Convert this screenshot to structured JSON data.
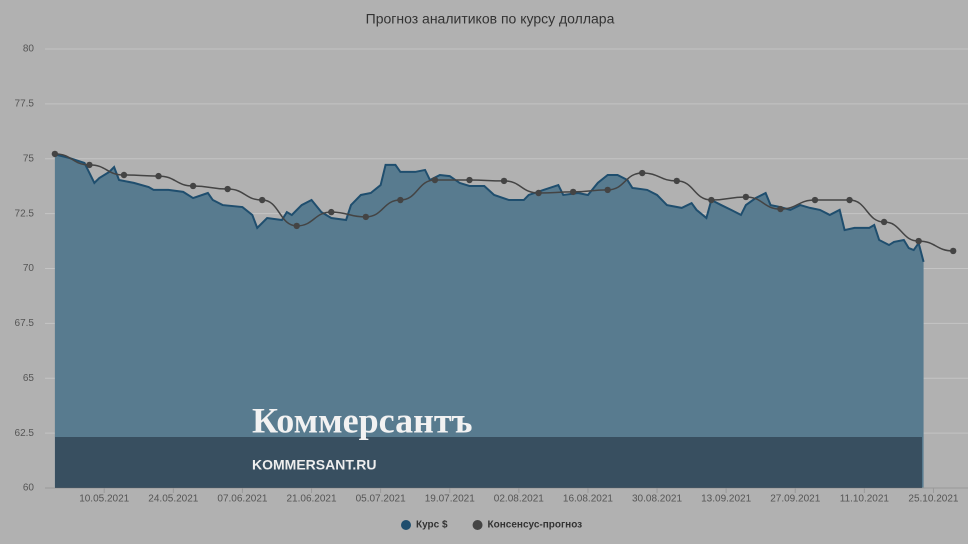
{
  "chart_data": {
    "type": "line",
    "title": "Прогноз аналитиков по курсу доллара",
    "xlim": [
      "28.04.2021",
      "01.11.2021"
    ],
    "xticks": [
      "10.05.2021",
      "24.05.2021",
      "07.06.2021",
      "21.06.2021",
      "05.07.2021",
      "19.07.2021",
      "02.08.2021",
      "16.08.2021",
      "30.08.2021",
      "13.09.2021",
      "27.09.2021",
      "11.10.2021",
      "25.10.2021"
    ],
    "ylim": [
      60,
      80
    ],
    "yticks": [
      60,
      62.5,
      65,
      67.5,
      70,
      72.5,
      75,
      77.5,
      80
    ],
    "grid": true,
    "legend": "bottom",
    "series": [
      {
        "name": "Курс $",
        "type": "area",
        "color": "#1f4e6e",
        "fill": "#587b8f",
        "x": [
          "30.04.2021",
          "03.05.2021",
          "06.05.2021",
          "08.05.2021",
          "09.05.2021",
          "11.05.2021",
          "12.05.2021",
          "13.05.2021",
          "16.05.2021",
          "19.05.2021",
          "20.05.2021",
          "23.05.2021",
          "26.05.2021",
          "28.05.2021",
          "31.05.2021",
          "01.06.2021",
          "03.06.2021",
          "07.06.2021",
          "09.06.2021",
          "10.06.2021",
          "12.06.2021",
          "15.06.2021",
          "16.06.2021",
          "17.06.2021",
          "19.06.2021",
          "21.06.2021",
          "23.06.2021",
          "25.06.2021",
          "28.06.2021",
          "29.06.2021",
          "01.07.2021",
          "03.07.2021",
          "05.07.2021",
          "06.07.2021",
          "08.07.2021",
          "09.07.2021",
          "12.07.2021",
          "14.07.2021",
          "15.07.2021",
          "17.07.2021",
          "19.07.2021",
          "21.07.2021",
          "23.07.2021",
          "26.07.2021",
          "28.07.2021",
          "31.07.2021",
          "03.08.2021",
          "04.08.2021",
          "07.08.2021",
          "10.08.2021",
          "11.08.2021",
          "14.08.2021",
          "16.08.2021",
          "18.08.2021",
          "20.08.2021",
          "22.08.2021",
          "24.08.2021",
          "25.08.2021",
          "28.08.2021",
          "30.08.2021",
          "01.09.2021",
          "04.09.2021",
          "06.09.2021",
          "07.09.2021",
          "09.09.2021",
          "10.09.2021",
          "12.09.2021",
          "14.09.2021",
          "16.09.2021",
          "17.09.2021",
          "19.09.2021",
          "21.09.2021",
          "22.09.2021",
          "24.09.2021",
          "26.09.2021",
          "28.09.2021",
          "30.09.2021",
          "02.10.2021",
          "04.10.2021",
          "06.10.2021",
          "07.10.2021",
          "09.10.2021",
          "12.10.2021",
          "13.10.2021",
          "14.10.2021",
          "16.10.2021",
          "17.10.2021",
          "19.10.2021",
          "20.10.2021",
          "21.10.2021",
          "22.10.2021",
          "23.10.2021"
        ],
        "values": [
          75.2,
          75.03,
          74.81,
          73.9,
          74.12,
          74.4,
          74.62,
          74.03,
          73.9,
          73.71,
          73.58,
          73.58,
          73.49,
          73.21,
          73.44,
          73.12,
          72.89,
          72.8,
          72.44,
          71.85,
          72.3,
          72.21,
          72.57,
          72.44,
          72.89,
          73.12,
          72.57,
          72.3,
          72.21,
          72.89,
          73.35,
          73.44,
          73.8,
          74.72,
          74.72,
          74.4,
          74.4,
          74.49,
          74.03,
          74.26,
          74.21,
          73.9,
          73.76,
          73.76,
          73.35,
          73.12,
          73.12,
          73.35,
          73.58,
          73.8,
          73.35,
          73.44,
          73.35,
          73.9,
          74.26,
          74.26,
          74.03,
          73.67,
          73.58,
          73.35,
          72.89,
          72.76,
          72.98,
          72.67,
          72.3,
          73.12,
          72.89,
          72.67,
          72.44,
          72.89,
          73.21,
          73.44,
          72.89,
          72.8,
          72.67,
          72.89,
          72.76,
          72.67,
          72.44,
          72.67,
          71.75,
          71.85,
          71.85,
          71.98,
          71.3,
          71.07,
          71.21,
          71.3,
          70.93,
          70.84,
          71.16,
          70.3
        ]
      },
      {
        "name": "Консенсус-прогноз",
        "type": "line",
        "color": "#444444",
        "x": [
          "30.04.2021",
          "07.05.2021",
          "14.05.2021",
          "21.05.2021",
          "28.05.2021",
          "04.06.2021",
          "11.06.2021",
          "18.06.2021",
          "25.06.2021",
          "02.07.2021",
          "09.07.2021",
          "16.07.2021",
          "23.07.2021",
          "30.07.2021",
          "06.08.2021",
          "13.08.2021",
          "20.08.2021",
          "27.08.2021",
          "03.09.2021",
          "10.09.2021",
          "17.09.2021",
          "24.09.2021",
          "01.10.2021",
          "08.10.2021",
          "15.10.2021",
          "22.10.2021",
          "29.10.2021"
        ],
        "values": [
          75.22,
          74.72,
          74.26,
          74.21,
          73.76,
          73.62,
          73.12,
          71.94,
          72.57,
          72.35,
          73.12,
          74.03,
          74.03,
          73.99,
          73.44,
          73.49,
          73.58,
          74.35,
          73.99,
          73.12,
          73.26,
          72.71,
          73.12,
          73.12,
          72.12,
          71.25,
          70.8
        ]
      }
    ]
  },
  "watermark": {
    "logo": "Коммерсантъ",
    "url": "KOMMERSANT.RU"
  }
}
